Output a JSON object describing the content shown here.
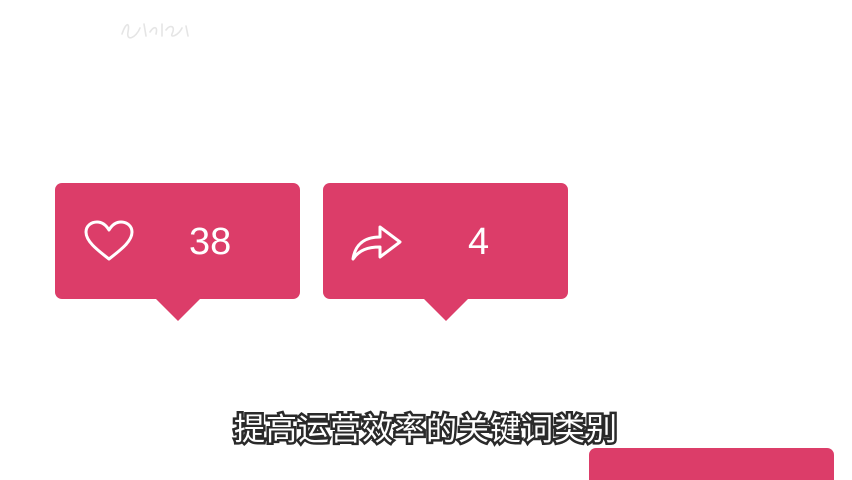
{
  "like_card": {
    "icon": "heart-outline-icon",
    "count": "38"
  },
  "share_card": {
    "icon": "share-arrow-icon",
    "count": "4"
  },
  "subtitle": "提高运营效率的关键词类别",
  "colors": {
    "accent": "#dc3d69",
    "background": "#ffffff",
    "subtitle_fill": "#ffffff",
    "subtitle_outline": "#2a2a2a"
  }
}
